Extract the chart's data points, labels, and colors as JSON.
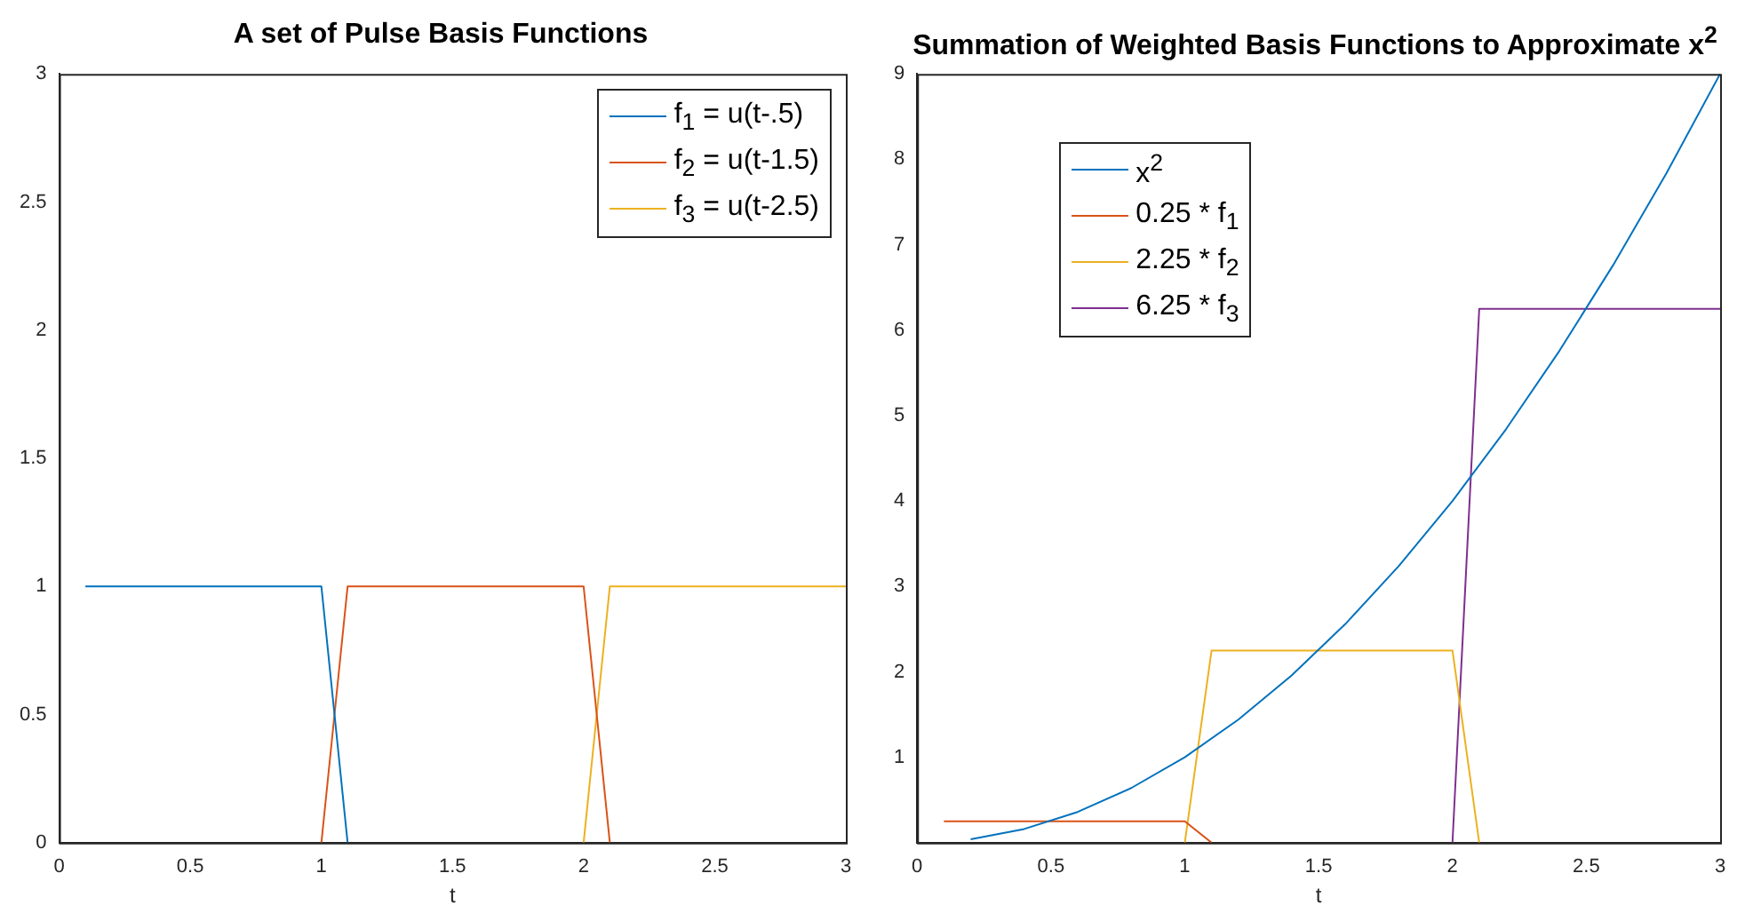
{
  "chart_data": [
    {
      "type": "line",
      "title": "A set of Pulse Basis Functions",
      "xlabel": "t",
      "x": [
        0.1,
        0.2,
        0.3,
        0.4,
        0.5,
        0.6,
        0.7,
        0.8,
        0.9,
        1.0,
        1.1,
        1.2,
        1.3,
        1.4,
        1.5,
        1.6,
        1.7,
        1.8,
        1.9,
        2.0,
        2.1,
        2.2,
        2.3,
        2.4,
        2.5,
        2.6,
        2.7,
        2.8,
        2.9,
        3.0
      ],
      "series": [
        {
          "name": "f$_{1}$ = u(t-.5)",
          "color": "#0072bd",
          "values": [
            1,
            1,
            1,
            1,
            1,
            1,
            1,
            1,
            1,
            1,
            0,
            null,
            null,
            null,
            null,
            null,
            null,
            null,
            null,
            null,
            null,
            null,
            null,
            null,
            null,
            null,
            null,
            null,
            null,
            null
          ]
        },
        {
          "name": "f$_{2}$ = u(t-1.5)",
          "color": "#d95319",
          "values": [
            null,
            null,
            null,
            null,
            null,
            null,
            null,
            null,
            null,
            0,
            1,
            1,
            1,
            1,
            1,
            1,
            1,
            1,
            1,
            1,
            0,
            null,
            null,
            null,
            null,
            null,
            null,
            null,
            null,
            null
          ]
        },
        {
          "name": "f$_{3}$ = u(t-2.5)",
          "color": "#edb120",
          "values": [
            null,
            null,
            null,
            null,
            null,
            null,
            null,
            null,
            null,
            null,
            null,
            null,
            null,
            null,
            null,
            null,
            null,
            null,
            null,
            0,
            1,
            1,
            1,
            1,
            1,
            1,
            1,
            1,
            1,
            1
          ]
        }
      ],
      "xlim": [
        0,
        3
      ],
      "xticks": [
        0,
        0.5,
        1,
        1.5,
        2,
        2.5,
        3
      ],
      "ylim": [
        0,
        3
      ],
      "yticks": [
        0,
        0.5,
        1,
        1.5,
        2,
        2.5,
        3
      ],
      "legend": "top right",
      "marker": "none",
      "line_style": "solid",
      "grid": false
    },
    {
      "type": "line",
      "title": "Summation of Weighted Basis Functions to Approximate x$^{2}$",
      "xlabel": "t",
      "x": [
        0.1,
        0.2,
        0.3,
        0.4,
        0.5,
        0.6,
        0.7,
        0.8,
        0.9,
        1.0,
        1.1,
        1.2,
        1.3,
        1.4,
        1.5,
        1.6,
        1.7,
        1.8,
        1.9,
        2.0,
        2.1,
        2.2,
        2.3,
        2.4,
        2.5,
        2.6,
        2.7,
        2.8,
        2.9,
        3.0
      ],
      "series": [
        {
          "name": "x$^{2}$",
          "color": "#0072bd",
          "x": [
            0.2,
            0.4,
            0.6,
            0.8,
            1.0,
            1.2,
            1.4,
            1.6,
            1.8,
            2.0,
            2.2,
            2.4,
            2.6,
            2.8,
            3.0
          ],
          "values": [
            0.04,
            0.16,
            0.36,
            0.64,
            1,
            1.44,
            1.96,
            2.56,
            3.24,
            4,
            4.84,
            5.76,
            6.76,
            7.84,
            9
          ]
        },
        {
          "name": "0.25 * f$_{1}$",
          "color": "#d95319",
          "values": [
            0.25,
            0.25,
            0.25,
            0.25,
            0.25,
            0.25,
            0.25,
            0.25,
            0.25,
            0.25,
            0,
            null,
            null,
            null,
            null,
            null,
            null,
            null,
            null,
            null,
            null,
            null,
            null,
            null,
            null,
            null,
            null,
            null,
            null,
            null
          ]
        },
        {
          "name": "2.25 * f$_{2}$",
          "color": "#edb120",
          "values": [
            null,
            null,
            null,
            null,
            null,
            null,
            null,
            null,
            null,
            0,
            2.25,
            2.25,
            2.25,
            2.25,
            2.25,
            2.25,
            2.25,
            2.25,
            2.25,
            2.25,
            0,
            null,
            null,
            null,
            null,
            null,
            null,
            null,
            null,
            null
          ]
        },
        {
          "name": "6.25 * f$_{3}$",
          "color": "#7e2f8e",
          "values": [
            null,
            null,
            null,
            null,
            null,
            null,
            null,
            null,
            null,
            null,
            null,
            null,
            null,
            null,
            null,
            null,
            null,
            null,
            null,
            0,
            6.25,
            6.25,
            6.25,
            6.25,
            6.25,
            6.25,
            6.25,
            6.25,
            6.25,
            6.25
          ]
        }
      ],
      "xlim": [
        0,
        3
      ],
      "xticks": [
        0,
        0.5,
        1,
        1.5,
        2,
        2.5,
        3
      ],
      "ylim": [
        0,
        9
      ],
      "yticks": [
        1,
        2,
        3,
        4,
        5,
        6,
        7,
        8,
        9
      ],
      "legend": "top left",
      "marker": "none",
      "line_style": "solid",
      "grid": false
    }
  ]
}
